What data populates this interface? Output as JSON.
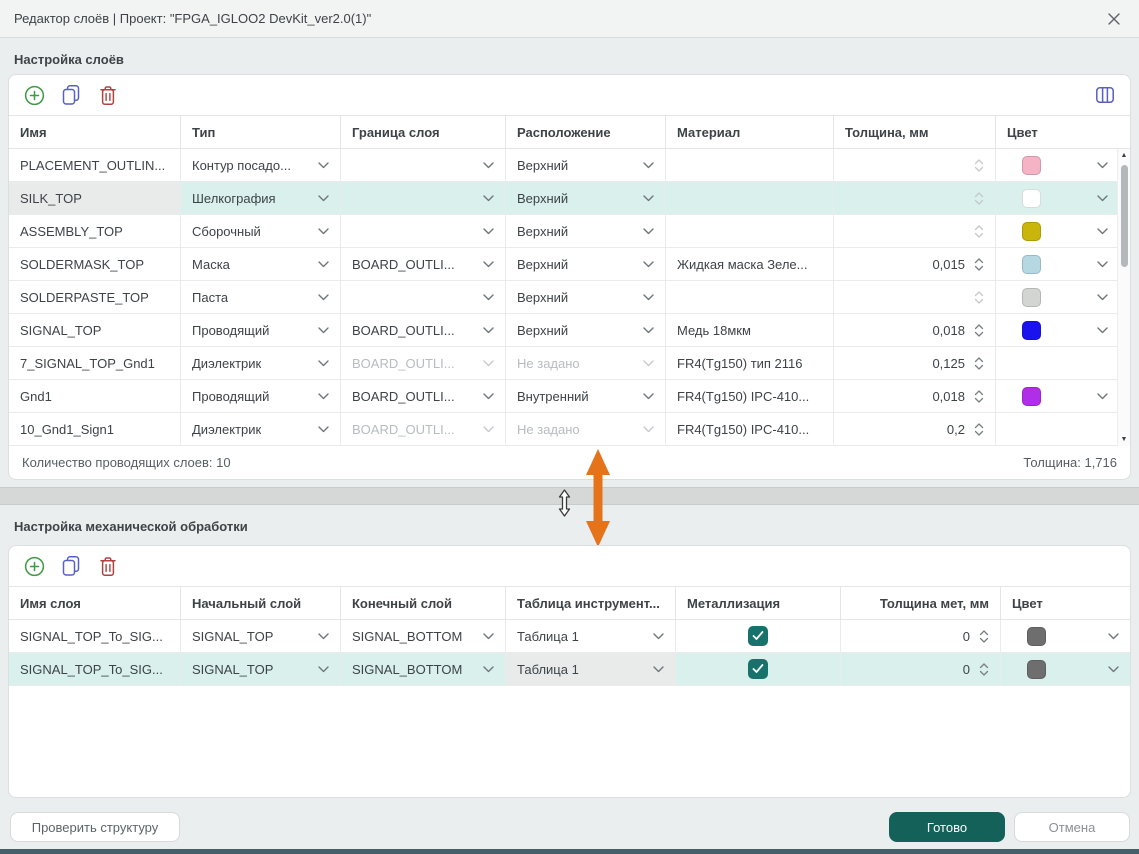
{
  "dialog": {
    "title": "Редактор слоёв | Проект: \"FPGA_IGLOO2 DevKit_ver2.0(1)\"",
    "close_icon": "close-x"
  },
  "colors": {
    "selection_teal": "#d9f0ec",
    "current_cell_gray": "#e9ebeb",
    "accent_teal_button": "#136159",
    "checkbox_teal": "#17726b",
    "annotation_orange": "#e5731a"
  },
  "layers_section": {
    "label": "Настройка слоёв",
    "icons": {
      "add": "plus-circle",
      "duplicate": "copy-pages",
      "delete": "trash",
      "columns": "columns-view"
    },
    "columns": [
      "Имя",
      "Тип",
      "Граница слоя",
      "Расположение",
      "Материал",
      "Толщина, мм",
      "Цвет"
    ],
    "rows": [
      {
        "name": "PLACEMENT_OUTLIN...",
        "type": "Контур посадо...",
        "boundary": "",
        "location": "Верхний",
        "material": "",
        "thickness": "",
        "color": "#f5b3c5",
        "dim": false,
        "selected": false
      },
      {
        "name": "SILK_TOP",
        "type": "Шелкография",
        "boundary": "",
        "location": "Верхний",
        "material": "",
        "thickness": "",
        "color": "#ffffff",
        "dim": false,
        "selected": true
      },
      {
        "name": "ASSEMBLY_TOP",
        "type": "Сборочный",
        "boundary": "",
        "location": "Верхний",
        "material": "",
        "thickness": "",
        "color": "#c9b50b",
        "dim": false,
        "selected": false
      },
      {
        "name": "SOLDERMASK_TOP",
        "type": "Маска",
        "boundary": "BOARD_OUTLI...",
        "location": "Верхний",
        "material": "Жидкая маска Зеле...",
        "thickness": "0,015",
        "color": "#b5d8e2",
        "dim": false,
        "selected": false
      },
      {
        "name": "SOLDERPASTE_TOP",
        "type": "Паста",
        "boundary": "",
        "location": "Верхний",
        "material": "",
        "thickness": "",
        "color": "#d2d5d2",
        "dim": false,
        "selected": false
      },
      {
        "name": "SIGNAL_TOP",
        "type": "Проводящий",
        "boundary": "BOARD_OUTLI...",
        "location": "Верхний",
        "material": "Медь 18мкм",
        "thickness": "0,018",
        "color": "#1b13ee",
        "dim": false,
        "selected": false
      },
      {
        "name": "7_SIGNAL_TOP_Gnd1",
        "type": "Диэлектрик",
        "boundary": "BOARD_OUTLI...",
        "location": "Не задано",
        "material": "FR4(Tg150) тип 2116",
        "thickness": "0,125",
        "color": null,
        "dim": true,
        "selected": false
      },
      {
        "name": "Gnd1",
        "type": "Проводящий",
        "boundary": "BOARD_OUTLI...",
        "location": "Внутренний",
        "material": "FR4(Tg150) IPC-410...",
        "thickness": "0,018",
        "color": "#b02ee8",
        "dim": false,
        "selected": false
      },
      {
        "name": "10_Gnd1_Sign1",
        "type": "Диэлектрик",
        "boundary": "BOARD_OUTLI...",
        "location": "Не задано",
        "material": "FR4(Tg150) IPC-410...",
        "thickness": "0,2",
        "color": null,
        "dim": true,
        "selected": false
      }
    ],
    "summary_left": "Количество проводящих слоев: 10",
    "summary_right": "Толщина: 1,716"
  },
  "mech_section": {
    "label": "Настройка механической обработки",
    "icons": {
      "add": "plus-circle",
      "duplicate": "copy-pages",
      "delete": "trash"
    },
    "columns": [
      "Имя слоя",
      "Начальный слой",
      "Конечный слой",
      "Таблица инструмент...",
      "Металлизация",
      "Толщина мет, мм",
      "Цвет"
    ],
    "rows": [
      {
        "name": "SIGNAL_TOP_To_SIG...",
        "start": "SIGNAL_TOP",
        "end": "SIGNAL_BOTTOM",
        "tool_table": "Таблица 1",
        "metallization": true,
        "thickness": "0",
        "color": "#6e6e6e",
        "selected": false
      },
      {
        "name": "SIGNAL_TOP_To_SIG...",
        "start": "SIGNAL_TOP",
        "end": "SIGNAL_BOTTOM",
        "tool_table": "Таблица 1",
        "metallization": true,
        "thickness": "0",
        "color": "#6e6e6e",
        "selected": true
      }
    ]
  },
  "footer": {
    "check_structure": "Проверить структуру",
    "done": "Готово",
    "cancel": "Отмена"
  }
}
